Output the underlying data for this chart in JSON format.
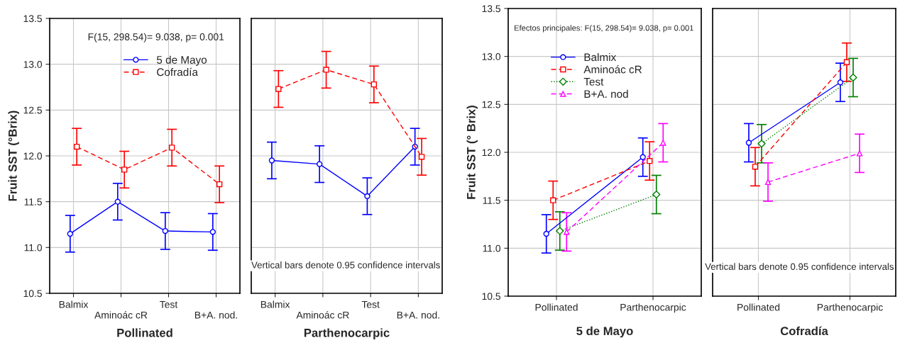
{
  "chart_data": [
    {
      "type": "line",
      "xlabel": "Pollinated",
      "ylabel": "Fruit SST (°Brix)",
      "categories": [
        "Balmix",
        "Aminoác cR",
        "Test",
        "B+A. nod."
      ],
      "ylim": [
        10.5,
        13.5
      ],
      "yticks": [
        {
          "value": 10.5,
          "label": "10.5"
        },
        {
          "value": 11.0,
          "label": "11.0"
        },
        {
          "value": 11.5,
          "label": "11.5"
        },
        {
          "value": 12.0,
          "label": "12.0"
        },
        {
          "value": 12.5,
          "label": "12.5"
        },
        {
          "value": 13.0,
          "label": "13.0"
        },
        {
          "value": 13.5,
          "label": "13.5"
        }
      ],
      "grid": true,
      "legend": "top right",
      "annotations": [
        "F(15, 298.54)= 9.038, p= 0.001"
      ],
      "series": [
        {
          "name": "5 de Mayo",
          "color": "#0000ff",
          "marker": "circle",
          "line_style": "solid",
          "values": [
            11.15,
            11.5,
            11.18,
            11.17
          ],
          "errors": [
            0.2,
            0.2,
            0.2,
            0.2
          ]
        },
        {
          "name": "Cofradía",
          "color": "#ff0000",
          "marker": "square",
          "line_style": "dashed",
          "values": [
            12.1,
            11.85,
            12.09,
            11.69
          ],
          "errors": [
            0.2,
            0.2,
            0.2,
            0.2
          ]
        }
      ]
    },
    {
      "type": "line",
      "xlabel": "Parthenocarpic",
      "categories": [
        "Balmix",
        "Aminoác cR",
        "Test",
        "B+A. nod."
      ],
      "ylim": [
        10.5,
        13.5
      ],
      "yticks": [
        10.5,
        11,
        11.5,
        12,
        12.5,
        13,
        13.5
      ],
      "tick_labels": "x",
      "grid": true,
      "annotations": [
        "Vertical bars denote 0.95 confidence intervals"
      ],
      "series": [
        {
          "color": "#0000ff",
          "marker": "circle",
          "line_style": "solid",
          "values": [
            11.95,
            11.91,
            11.56,
            12.1
          ],
          "errors": [
            0.2,
            0.2,
            0.2,
            0.2
          ]
        },
        {
          "color": "#ff0000",
          "marker": "square",
          "line_style": "dashed",
          "values": [
            12.73,
            12.94,
            12.78,
            11.99
          ],
          "errors": [
            0.2,
            0.2,
            0.2,
            0.2
          ]
        }
      ]
    },
    {
      "type": "line",
      "xlabel": "5 de Mayo",
      "ylabel": "Fruit SST (° Brix)",
      "categories": [
        "Pollinated",
        "Parthenocarpic"
      ],
      "ylim": [
        10.5,
        13.5
      ],
      "yticks": [
        {
          "value": 10.5,
          "label": "10.5"
        },
        {
          "value": 11.0,
          "label": "11.0"
        },
        {
          "value": 11.5,
          "label": "11.5"
        },
        {
          "value": 12.0,
          "label": "12.0"
        },
        {
          "value": 12.5,
          "label": "12.5"
        },
        {
          "value": 13.0,
          "label": "13.0"
        },
        {
          "value": 13.5,
          "label": "13.5"
        }
      ],
      "grid": true,
      "legend": "top left",
      "annotations": [
        "Efectos principales: F(15, 298.54)= 9.038, p= 0.001"
      ],
      "series": [
        {
          "name": "Balmix",
          "color": "#0000ff",
          "marker": "circle",
          "line_style": "solid",
          "values": [
            11.15,
            11.95
          ],
          "errors": [
            0.2,
            0.2
          ]
        },
        {
          "name": "Aminoác cR",
          "color": "#ff0000",
          "marker": "square",
          "line_style": "dashed",
          "values": [
            11.5,
            11.91
          ],
          "errors": [
            0.2,
            0.2
          ]
        },
        {
          "name": "Test",
          "color": "#008000",
          "marker": "diamond",
          "line_style": "dotted",
          "values": [
            11.18,
            11.56
          ],
          "errors": [
            0.2,
            0.2
          ]
        },
        {
          "name": "B+A. nod",
          "color": "#ff00ff",
          "marker": "triangle",
          "line_style": "dashed",
          "values": [
            11.17,
            12.1
          ],
          "errors": [
            0.2,
            0.2
          ]
        }
      ]
    },
    {
      "type": "line",
      "xlabel": "Cofradía",
      "categories": [
        "Pollinated",
        "Parthenocarpic"
      ],
      "ylim": [
        10.5,
        13.5
      ],
      "yticks": [
        10.5,
        11,
        11.5,
        12,
        12.5,
        13,
        13.5
      ],
      "tick_labels": "x",
      "grid": true,
      "annotations": [
        "Vertical bars denote 0.95 confidence intervals"
      ],
      "series": [
        {
          "color": "#0000ff",
          "marker": "circle",
          "line_style": "solid",
          "values": [
            12.1,
            12.73
          ],
          "errors": [
            0.2,
            0.2
          ]
        },
        {
          "color": "#ff0000",
          "marker": "square",
          "line_style": "dashed",
          "values": [
            11.85,
            12.94
          ],
          "errors": [
            0.2,
            0.2
          ]
        },
        {
          "color": "#008000",
          "marker": "diamond",
          "line_style": "dotted",
          "values": [
            12.09,
            12.78
          ],
          "errors": [
            0.2,
            0.2
          ]
        },
        {
          "color": "#ff00ff",
          "marker": "triangle",
          "line_style": "dashed",
          "values": [
            11.69,
            11.99
          ],
          "errors": [
            0.2,
            0.2
          ]
        }
      ]
    }
  ]
}
